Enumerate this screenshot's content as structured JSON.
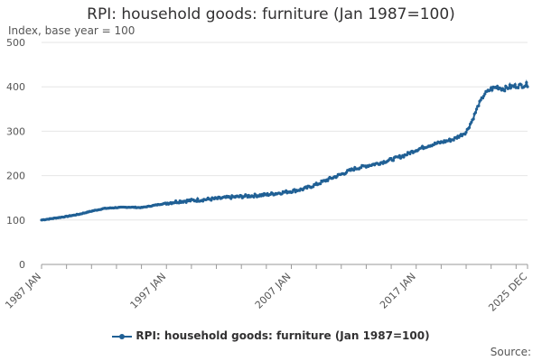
{
  "chart_data": {
    "type": "line",
    "title": "RPI: household goods: furniture (Jan 1987=100)",
    "ylabel": "Index, base year = 100",
    "xlabel": "",
    "ylim": [
      0,
      500
    ],
    "yticks": [
      "0",
      "100",
      "200",
      "300",
      "400",
      "500"
    ],
    "xticks": [
      "1987 JAN",
      "1997 JAN",
      "2007 JAN",
      "2017 JAN",
      "2025 DEC"
    ],
    "xrange": [
      "1987-01",
      "2025-12"
    ],
    "grid": true,
    "legend": "bottom",
    "series": [
      {
        "name": "RPI: household goods: furniture (Jan 1987=100)",
        "color": "#206095",
        "x": [
          "1987-01",
          "1988-01",
          "1989-01",
          "1990-01",
          "1991-01",
          "1992-01",
          "1993-01",
          "1994-01",
          "1995-01",
          "1996-01",
          "1997-01",
          "1998-01",
          "1999-01",
          "2000-01",
          "2001-01",
          "2002-01",
          "2003-01",
          "2004-01",
          "2005-01",
          "2006-01",
          "2007-01",
          "2008-01",
          "2009-01",
          "2010-01",
          "2011-01",
          "2012-01",
          "2013-01",
          "2014-01",
          "2015-01",
          "2016-01",
          "2017-01",
          "2018-01",
          "2019-01",
          "2020-01",
          "2020-07",
          "2021-01",
          "2021-07",
          "2022-01",
          "2022-07",
          "2023-01",
          "2023-07",
          "2024-01",
          "2024-07",
          "2025-01",
          "2025-07",
          "2025-12"
        ],
        "y": [
          100,
          104,
          108,
          113,
          120,
          126,
          128,
          129,
          128,
          133,
          138,
          142,
          144,
          146,
          148,
          151,
          153,
          155,
          157,
          161,
          165,
          170,
          180,
          192,
          203,
          215,
          222,
          228,
          236,
          245,
          258,
          268,
          275,
          282,
          290,
          298,
          325,
          360,
          385,
          395,
          400,
          395,
          400,
          402,
          403,
          405
        ]
      }
    ]
  },
  "source_label": "Source:"
}
